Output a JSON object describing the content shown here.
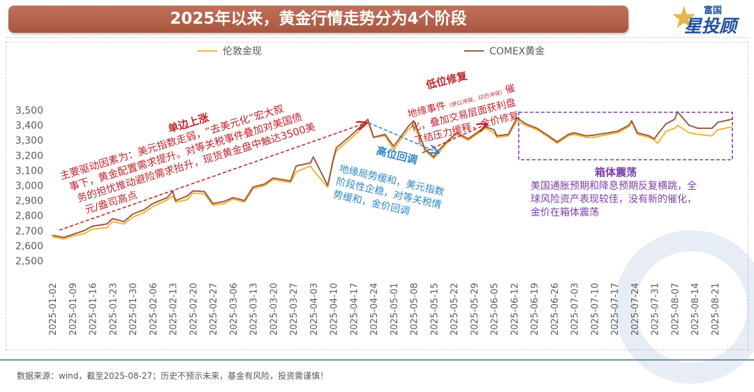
{
  "header": {
    "title": "2025年以来，黄金行情走势分为4个阶段",
    "logo_small": "富国",
    "logo_big": "星投顾"
  },
  "footer": {
    "source": "数据来源：wind，截至2025-08-27；历史不预示未来，基金有风险，投资需谨慎！"
  },
  "annotations": {
    "stage1_title": "单边上涨",
    "stage1_lines": [
      "主要驱动因素为：美元指数走弱，“去美元化”宏大叙",
      "事下，黄金配置需求提升。对等关税事件叠加对美国债",
      "务的担忧推动避险需求抬升，现货黄金盘中触达3500美",
      "元/盎司高点"
    ],
    "stage2_title": "高位回调",
    "stage2_lines": [
      "地缘局势缓和，美元指数",
      "阶段性企稳，对等关税情",
      "势缓和，金价回调"
    ],
    "stage3_title": "低位修复",
    "stage3_line1a": "地缘事件",
    "stage3_line1b": "（伊以冲突、印巴冲突）",
    "stage3_line1c": "催",
    "stage3_lines": [
      "化，叠加交易层面获利盘",
      "了结压力缓释，金价修复"
    ],
    "stage4_title": "箱体震荡",
    "stage4_lines": [
      "美国通胀预期和降息预期反复横跳，全",
      "球风险资产表现较佳，没有新的催化，",
      "金价在箱体震荡"
    ]
  },
  "chart_data": {
    "type": "line",
    "title": "",
    "xlabel": "",
    "ylabel": "",
    "ylim": [
      2500,
      3500
    ],
    "yticks": [
      2500,
      2600,
      2700,
      2800,
      2900,
      3000,
      3100,
      3200,
      3300,
      3400,
      3500
    ],
    "ytick_labels": [
      "2,500",
      "2,600",
      "2,700",
      "2,800",
      "2,900",
      "3,000",
      "3,100",
      "3,200",
      "3,300",
      "3,400",
      "3,500"
    ],
    "xtick_labels": [
      "2025-01-02",
      "2025-01-09",
      "2025-01-16",
      "2025-01-23",
      "2025-01-30",
      "2025-02-06",
      "2025-02-13",
      "2025-02-20",
      "2025-02-27",
      "2025-03-06",
      "2025-03-13",
      "2025-03-20",
      "2025-03-27",
      "2025-04-03",
      "2025-04-10",
      "2025-04-17",
      "2025-04-24",
      "2025-05-01",
      "2025-05-08",
      "2025-05-15",
      "2025-05-22",
      "2025-05-29",
      "2025-06-05",
      "2025-06-12",
      "2025-06-19",
      "2025-06-26",
      "2025-07-03",
      "2025-07-10",
      "2025-07-17",
      "2025-07-24",
      "2025-07-31",
      "2025-08-07",
      "2025-08-14",
      "2025-08-21"
    ],
    "legend_position": "top",
    "x": [
      "01-02",
      "01-06",
      "01-09",
      "01-13",
      "01-16",
      "01-21",
      "01-23",
      "01-27",
      "01-30",
      "02-03",
      "02-06",
      "02-11",
      "02-13",
      "02-14",
      "02-18",
      "02-20",
      "02-24",
      "02-27",
      "03-03",
      "03-06",
      "03-10",
      "03-13",
      "03-17",
      "03-20",
      "03-26",
      "03-28",
      "04-02",
      "04-03",
      "04-08",
      "04-10",
      "04-11",
      "04-16",
      "04-21",
      "04-22",
      "04-24",
      "04-28",
      "05-01",
      "05-06",
      "05-08",
      "05-12",
      "05-15",
      "05-16",
      "05-20",
      "05-23",
      "05-27",
      "06-02",
      "06-05",
      "06-06",
      "06-10",
      "06-13",
      "06-16",
      "06-20",
      "06-24",
      "06-27",
      "07-01",
      "07-03",
      "07-07",
      "07-10",
      "07-15",
      "07-18",
      "07-22",
      "07-23",
      "07-25",
      "07-29",
      "07-31",
      "08-01",
      "08-04",
      "08-07",
      "08-08",
      "08-12",
      "08-15",
      "08-20",
      "08-22",
      "08-27"
    ],
    "series": [
      {
        "name": "伦敦金现",
        "color": "#f2b632",
        "values": [
          2658,
          2645,
          2665,
          2680,
          2710,
          2720,
          2760,
          2745,
          2790,
          2820,
          2860,
          2905,
          2930,
          2890,
          2905,
          2950,
          2945,
          2870,
          2880,
          2910,
          2890,
          2980,
          3000,
          3040,
          3020,
          3090,
          3130,
          3100,
          2990,
          3170,
          3230,
          3310,
          3400,
          3420,
          3320,
          3330,
          3240,
          3370,
          3400,
          3230,
          3180,
          3200,
          3290,
          3340,
          3300,
          3380,
          3350,
          3320,
          3330,
          3430,
          3400,
          3370,
          3320,
          3280,
          3330,
          3340,
          3320,
          3320,
          3340,
          3350,
          3390,
          3420,
          3340,
          3320,
          3300,
          3280,
          3360,
          3380,
          3400,
          3350,
          3340,
          3330,
          3370,
          3390
        ]
      },
      {
        "name": "COMEX黄金",
        "color": "#9b5a44",
        "values": [
          2670,
          2655,
          2675,
          2700,
          2730,
          2745,
          2780,
          2760,
          2810,
          2840,
          2880,
          2920,
          2960,
          2900,
          2930,
          2965,
          2960,
          2880,
          2895,
          2920,
          2900,
          2990,
          3010,
          3050,
          3030,
          3130,
          3150,
          3190,
          3000,
          3180,
          3250,
          3330,
          3420,
          3440,
          3320,
          3340,
          3260,
          3390,
          3430,
          3240,
          3190,
          3220,
          3300,
          3350,
          3310,
          3390,
          3370,
          3330,
          3340,
          3450,
          3410,
          3380,
          3330,
          3290,
          3340,
          3350,
          3330,
          3335,
          3350,
          3360,
          3400,
          3430,
          3350,
          3330,
          3310,
          3340,
          3410,
          3440,
          3490,
          3400,
          3380,
          3380,
          3420,
          3440
        ]
      }
    ]
  }
}
